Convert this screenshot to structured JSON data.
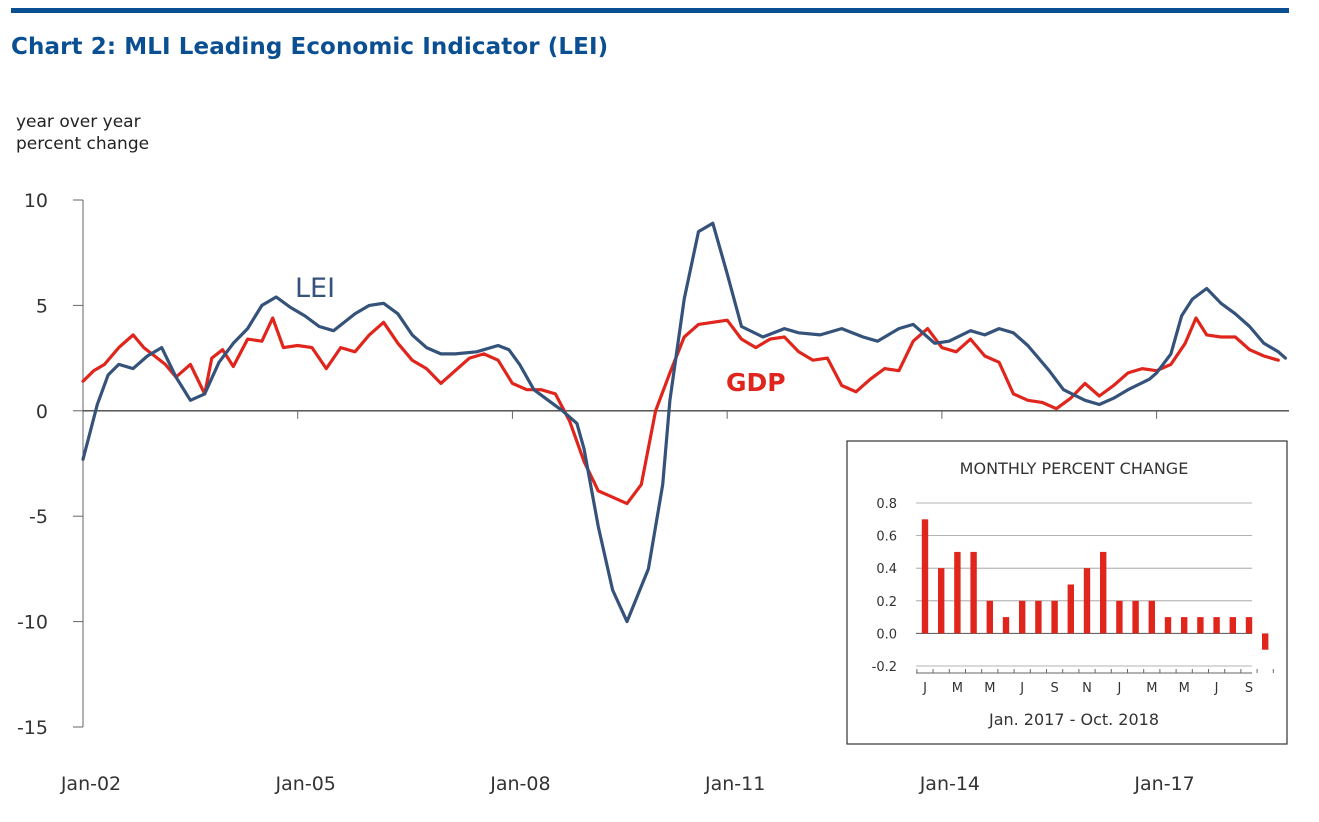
{
  "title": "Chart 2: MLI Leading Economic Indicator (LEI)",
  "ylabel_line1": "year over year",
  "ylabel_line2": "percent change",
  "colors": {
    "title": "#0B4F93",
    "lei": "#34527A",
    "gdp": "#E0261C",
    "axis": "#666666",
    "inset_bar": "#E0261C"
  },
  "chart_data": [
    {
      "type": "line",
      "title": "Chart 2: MLI Leading Economic Indicator (LEI)",
      "ylabel": "year over year percent change",
      "xlabel": "",
      "x_tick_labels": [
        "Jan-02",
        "Jan-05",
        "Jan-08",
        "Jan-11",
        "Jan-14",
        "Jan-17"
      ],
      "ylim": [
        -15,
        10
      ],
      "y_ticks": [
        10,
        5,
        0,
        -5,
        -10,
        -15
      ],
      "grid": false,
      "series_labels_on_chart": [
        "LEI",
        "GDP"
      ],
      "series": [
        {
          "name": "LEI",
          "x": [
            2002.0,
            2002.1,
            2002.2,
            2002.35,
            2002.5,
            2002.7,
            2002.9,
            2003.1,
            2003.3,
            2003.5,
            2003.7,
            2003.9,
            2004.1,
            2004.3,
            2004.5,
            2004.7,
            2004.9,
            2005.1,
            2005.3,
            2005.5,
            2005.8,
            2006.0,
            2006.2,
            2006.4,
            2006.6,
            2006.8,
            2007.0,
            2007.2,
            2007.5,
            2007.8,
            2007.95,
            2008.1,
            2008.3,
            2008.5,
            2008.7,
            2008.9,
            2009.0,
            2009.2,
            2009.4,
            2009.6,
            2009.9,
            2010.1,
            2010.2,
            2010.4,
            2010.6,
            2010.8,
            2011.0,
            2011.2,
            2011.5,
            2011.8,
            2012.0,
            2012.3,
            2012.6,
            2012.9,
            2013.1,
            2013.4,
            2013.6,
            2013.9,
            2014.1,
            2014.4,
            2014.6,
            2014.8,
            2015.0,
            2015.2,
            2015.5,
            2015.7,
            2016.0,
            2016.2,
            2016.4,
            2016.6,
            2016.9,
            2017.0,
            2017.2,
            2017.35,
            2017.5,
            2017.7,
            2017.9,
            2018.1,
            2018.3,
            2018.5,
            2018.7,
            2018.8
          ],
          "y": [
            -2.3,
            -1.0,
            0.3,
            1.7,
            2.2,
            2.0,
            2.6,
            3.0,
            1.6,
            0.5,
            0.8,
            2.3,
            3.2,
            3.9,
            5.0,
            5.4,
            4.9,
            4.5,
            4.0,
            3.8,
            4.6,
            5.0,
            5.1,
            4.6,
            3.6,
            3.0,
            2.7,
            2.7,
            2.8,
            3.1,
            2.9,
            2.2,
            1.0,
            0.5,
            0.0,
            -0.6,
            -1.8,
            -5.5,
            -8.5,
            -10.0,
            -7.5,
            -3.5,
            0.5,
            5.3,
            8.5,
            8.9,
            6.5,
            4.0,
            3.5,
            3.9,
            3.7,
            3.6,
            3.9,
            3.5,
            3.3,
            3.9,
            4.1,
            3.2,
            3.3,
            3.8,
            3.6,
            3.9,
            3.7,
            3.1,
            1.9,
            1.0,
            0.5,
            0.3,
            0.6,
            1.0,
            1.5,
            1.8,
            2.7,
            4.5,
            5.3,
            5.8,
            5.1,
            4.6,
            4.0,
            3.2,
            2.8,
            2.5
          ]
        },
        {
          "name": "GDP",
          "x": [
            2002.0,
            2002.15,
            2002.3,
            2002.5,
            2002.7,
            2002.85,
            2003.0,
            2003.15,
            2003.3,
            2003.5,
            2003.7,
            2003.8,
            2003.95,
            2004.1,
            2004.3,
            2004.5,
            2004.65,
            2004.8,
            2005.0,
            2005.2,
            2005.4,
            2005.6,
            2005.8,
            2006.0,
            2006.2,
            2006.4,
            2006.6,
            2006.8,
            2007.0,
            2007.2,
            2007.4,
            2007.6,
            2007.8,
            2008.0,
            2008.2,
            2008.4,
            2008.6,
            2008.8,
            2009.0,
            2009.2,
            2009.4,
            2009.6,
            2009.8,
            2010.0,
            2010.2,
            2010.4,
            2010.6,
            2010.8,
            2011.0,
            2011.2,
            2011.4,
            2011.6,
            2011.8,
            2012.0,
            2012.2,
            2012.4,
            2012.6,
            2012.8,
            2013.0,
            2013.2,
            2013.4,
            2013.6,
            2013.8,
            2014.0,
            2014.2,
            2014.4,
            2014.6,
            2014.8,
            2015.0,
            2015.2,
            2015.4,
            2015.6,
            2015.8,
            2016.0,
            2016.2,
            2016.4,
            2016.6,
            2016.8,
            2017.0,
            2017.2,
            2017.4,
            2017.55,
            2017.7,
            2017.9,
            2018.1,
            2018.3,
            2018.5,
            2018.7
          ],
          "y": [
            1.4,
            1.9,
            2.2,
            3.0,
            3.6,
            3.0,
            2.6,
            2.2,
            1.6,
            2.2,
            0.8,
            2.5,
            2.9,
            2.1,
            3.4,
            3.3,
            4.4,
            3.0,
            3.1,
            3.0,
            2.0,
            3.0,
            2.8,
            3.6,
            4.2,
            3.2,
            2.4,
            2.0,
            1.3,
            1.9,
            2.5,
            2.7,
            2.4,
            1.3,
            1.0,
            1.0,
            0.8,
            -0.5,
            -2.4,
            -3.8,
            -4.1,
            -4.4,
            -3.5,
            0.0,
            1.8,
            3.5,
            4.1,
            4.2,
            4.3,
            3.4,
            3.0,
            3.4,
            3.5,
            2.8,
            2.4,
            2.5,
            1.2,
            0.9,
            1.5,
            2.0,
            1.9,
            3.3,
            3.9,
            3.0,
            2.8,
            3.4,
            2.6,
            2.3,
            0.8,
            0.5,
            0.4,
            0.1,
            0.6,
            1.3,
            0.7,
            1.2,
            1.8,
            2.0,
            1.9,
            2.2,
            3.2,
            4.4,
            3.6,
            3.5,
            3.5,
            2.9,
            2.6,
            2.4
          ]
        }
      ]
    },
    {
      "type": "bar",
      "title": "MONTHLY PERCENT CHANGE",
      "xlabel": "Jan. 2017 - Oct. 2018",
      "ylabel": "",
      "ylim": [
        -0.2,
        0.8
      ],
      "y_tick_labels": [
        "0.8",
        "0.6",
        "0.4",
        "0.2",
        "0.0",
        "-0.2"
      ],
      "y_ticks": [
        0.8,
        0.6,
        0.4,
        0.2,
        0.0,
        -0.2
      ],
      "tick_labels": [
        "J",
        "M",
        "M",
        "J",
        "S",
        "N",
        "J",
        "M",
        "M",
        "J",
        "S"
      ],
      "categories": [
        "Jan 2017",
        "Feb 2017",
        "Mar 2017",
        "Apr 2017",
        "May 2017",
        "Jun 2017",
        "Jul 2017",
        "Aug 2017",
        "Sep 2017",
        "Oct 2017",
        "Nov 2017",
        "Dec 2017",
        "Jan 2018",
        "Feb 2018",
        "Mar 2018",
        "Apr 2018",
        "May 2018",
        "Jun 2018",
        "Jul 2018",
        "Aug 2018",
        "Sep 2018",
        "Oct 2018"
      ],
      "values": [
        0.7,
        0.4,
        0.5,
        0.5,
        0.2,
        0.1,
        0.2,
        0.2,
        0.2,
        0.3,
        0.4,
        0.5,
        0.2,
        0.2,
        0.2,
        0.1,
        0.1,
        0.1,
        0.1,
        0.1,
        0.1,
        -0.1
      ],
      "grid": true
    }
  ]
}
